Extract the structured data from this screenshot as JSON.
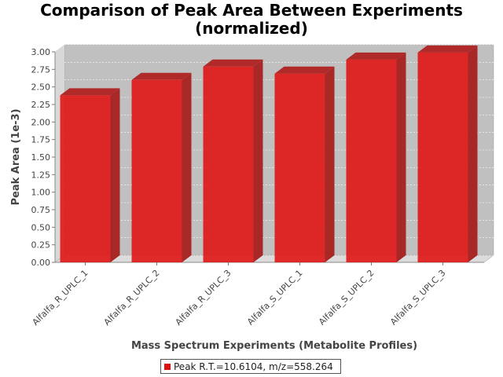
{
  "chart_data": {
    "type": "bar",
    "title_line1": "Comparison of Peak Area Between Experiments",
    "title_line2": "(normalized)",
    "xlabel": "Mass Spectrum Experiments (Metabolite Profiles)",
    "ylabel": "Peak Area (1e-3)",
    "categories": [
      "Alfalfa_R_UPLC_1",
      "Alfalfa_R_UPLC_2",
      "Alfalfa_R_UPLC_3",
      "Alfalfa_S_UPLC_1",
      "Alfalfa_S_UPLC_2",
      "Alfalfa_S_UPLC_3"
    ],
    "series": [
      {
        "name": "Peak R.T.=10.6104, m/z=558.264",
        "values": [
          2.38,
          2.6,
          2.79,
          2.69,
          2.89,
          2.99
        ],
        "color": "#e01010"
      }
    ],
    "ylim": [
      0,
      3.0
    ],
    "yticks": [
      "0.00",
      "0.25",
      "0.50",
      "0.75",
      "1.00",
      "1.25",
      "1.50",
      "1.75",
      "2.00",
      "2.25",
      "2.50",
      "2.75",
      "3.00"
    ],
    "grid": true,
    "legend_position": "bottom",
    "plot_background": "#c0c0c0"
  }
}
